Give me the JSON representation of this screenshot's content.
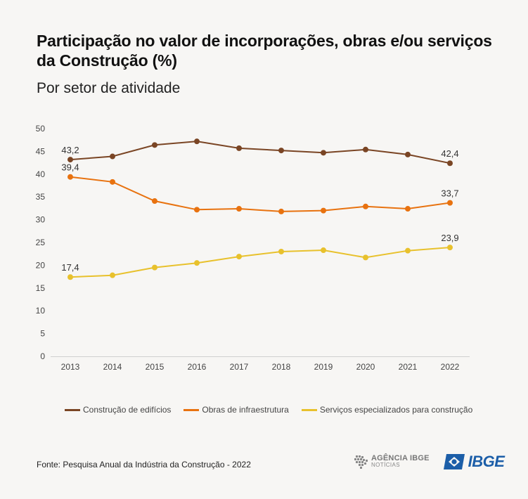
{
  "title": "Participação no valor de incorporações, obras e/ou serviços da Construção (%)",
  "subtitle": "Por setor de atividade",
  "source": "Fonte: Pesquisa Anual da Indústria da Construção - 2022",
  "logos": {
    "agencia_name": "AGÊNCIA IBGE",
    "agencia_sub": "NOTÍCIAS",
    "ibge": "IBGE"
  },
  "chart_data": {
    "type": "line",
    "title": "Participação no valor de incorporações, obras e/ou serviços da Construção (%)",
    "subtitle": "Por setor de atividade",
    "x": [
      "2013",
      "2014",
      "2015",
      "2016",
      "2017",
      "2018",
      "2019",
      "2020",
      "2021",
      "2022"
    ],
    "ylim": [
      0,
      50
    ],
    "yticks": [
      0,
      5,
      10,
      15,
      20,
      25,
      30,
      35,
      40,
      45,
      50
    ],
    "grid": false,
    "legend_position": "bottom",
    "series": [
      {
        "name": "Construção de edifícios",
        "color": "#7a4524",
        "values": [
          43.2,
          43.9,
          46.4,
          47.2,
          45.7,
          45.2,
          44.7,
          45.4,
          44.3,
          42.4
        ],
        "labels": {
          "0": "43,2",
          "9": "42,4"
        }
      },
      {
        "name": "Obras de infraestrutura",
        "color": "#e8720f",
        "values": [
          39.4,
          38.3,
          34.1,
          32.2,
          32.4,
          31.8,
          32.0,
          32.9,
          32.4,
          33.7
        ],
        "labels": {
          "0": "39,4",
          "9": "33,7"
        }
      },
      {
        "name": "Serviços especializados para construção",
        "color": "#e8c12c",
        "values": [
          17.4,
          17.8,
          19.5,
          20.5,
          21.9,
          23.0,
          23.3,
          21.7,
          23.2,
          23.9
        ],
        "labels": {
          "0": "17,4",
          "9": "23,9"
        }
      }
    ]
  }
}
